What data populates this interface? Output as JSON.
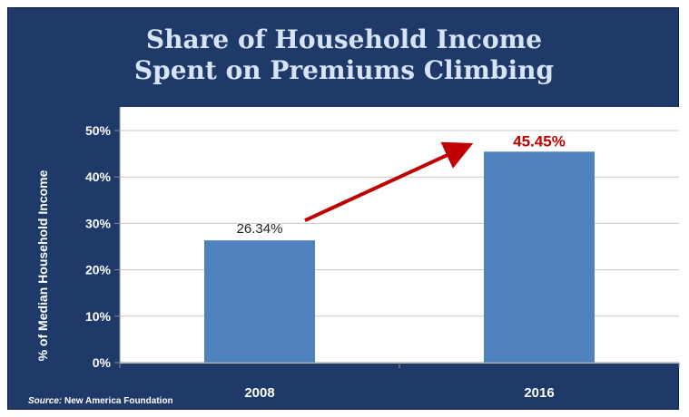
{
  "chart_data": {
    "type": "bar",
    "title_line1": "Share of Household Income",
    "title_line2": "Spent on Premiums Climbing",
    "xlabel": "",
    "ylabel": "% of Median  Household Income",
    "categories": [
      "2008",
      "2016"
    ],
    "values": [
      26.34,
      45.45
    ],
    "data_labels": [
      "26.34%",
      "45.45%"
    ],
    "yticks": [
      "0%",
      "10%",
      "20%",
      "30%",
      "40%",
      "50%"
    ],
    "ylim": [
      0,
      50
    ],
    "grid": true,
    "annotation": "arrow from 2008 to 2016"
  },
  "source": {
    "prefix": "Source:",
    "text": "New America Foundation"
  },
  "colors": {
    "frame_bg": "#1f3a68",
    "title": "#d7e4f8",
    "plot_bg": "#ffffff",
    "bar": "#4f81bd",
    "arrow": "#c00000",
    "highlight_label": "#c00000",
    "grid": "#c8c8c8"
  }
}
